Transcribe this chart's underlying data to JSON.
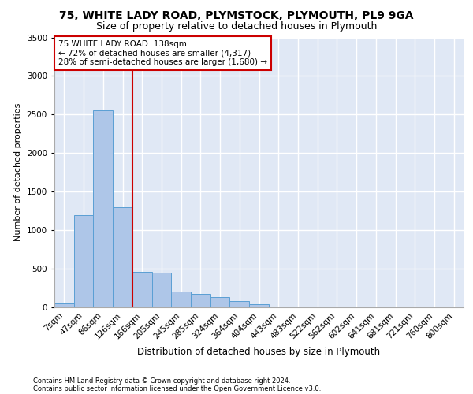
{
  "title1": "75, WHITE LADY ROAD, PLYMSTOCK, PLYMOUTH, PL9 9GA",
  "title2": "Size of property relative to detached houses in Plymouth",
  "xlabel": "Distribution of detached houses by size in Plymouth",
  "ylabel": "Number of detached properties",
  "footnote1": "Contains HM Land Registry data © Crown copyright and database right 2024.",
  "footnote2": "Contains public sector information licensed under the Open Government Licence v3.0.",
  "bar_labels": [
    "7sqm",
    "47sqm",
    "86sqm",
    "126sqm",
    "166sqm",
    "205sqm",
    "245sqm",
    "285sqm",
    "324sqm",
    "364sqm",
    "404sqm",
    "443sqm",
    "483sqm",
    "522sqm",
    "562sqm",
    "602sqm",
    "641sqm",
    "681sqm",
    "721sqm",
    "760sqm",
    "800sqm"
  ],
  "bar_values": [
    50,
    1200,
    2550,
    1300,
    460,
    450,
    200,
    175,
    130,
    80,
    40,
    10,
    0,
    0,
    0,
    0,
    0,
    0,
    0,
    0,
    0
  ],
  "bar_color": "#aec6e8",
  "bar_edge_color": "#5a9fd4",
  "background_color": "#e0e8f5",
  "grid_color": "#ffffff",
  "red_line_x": 3.5,
  "red_line_color": "#cc0000",
  "annotation_text": "75 WHITE LADY ROAD: 138sqm\n← 72% of detached houses are smaller (4,317)\n28% of semi-detached houses are larger (1,680) →",
  "annotation_box_color": "#cc0000",
  "ylim": [
    0,
    3500
  ],
  "yticks": [
    0,
    500,
    1000,
    1500,
    2000,
    2500,
    3000,
    3500
  ],
  "title1_fontsize": 10,
  "title2_fontsize": 9,
  "xlabel_fontsize": 8.5,
  "ylabel_fontsize": 8,
  "annotation_fontsize": 7.5,
  "tick_fontsize": 7.5,
  "footnote_fontsize": 6.0
}
